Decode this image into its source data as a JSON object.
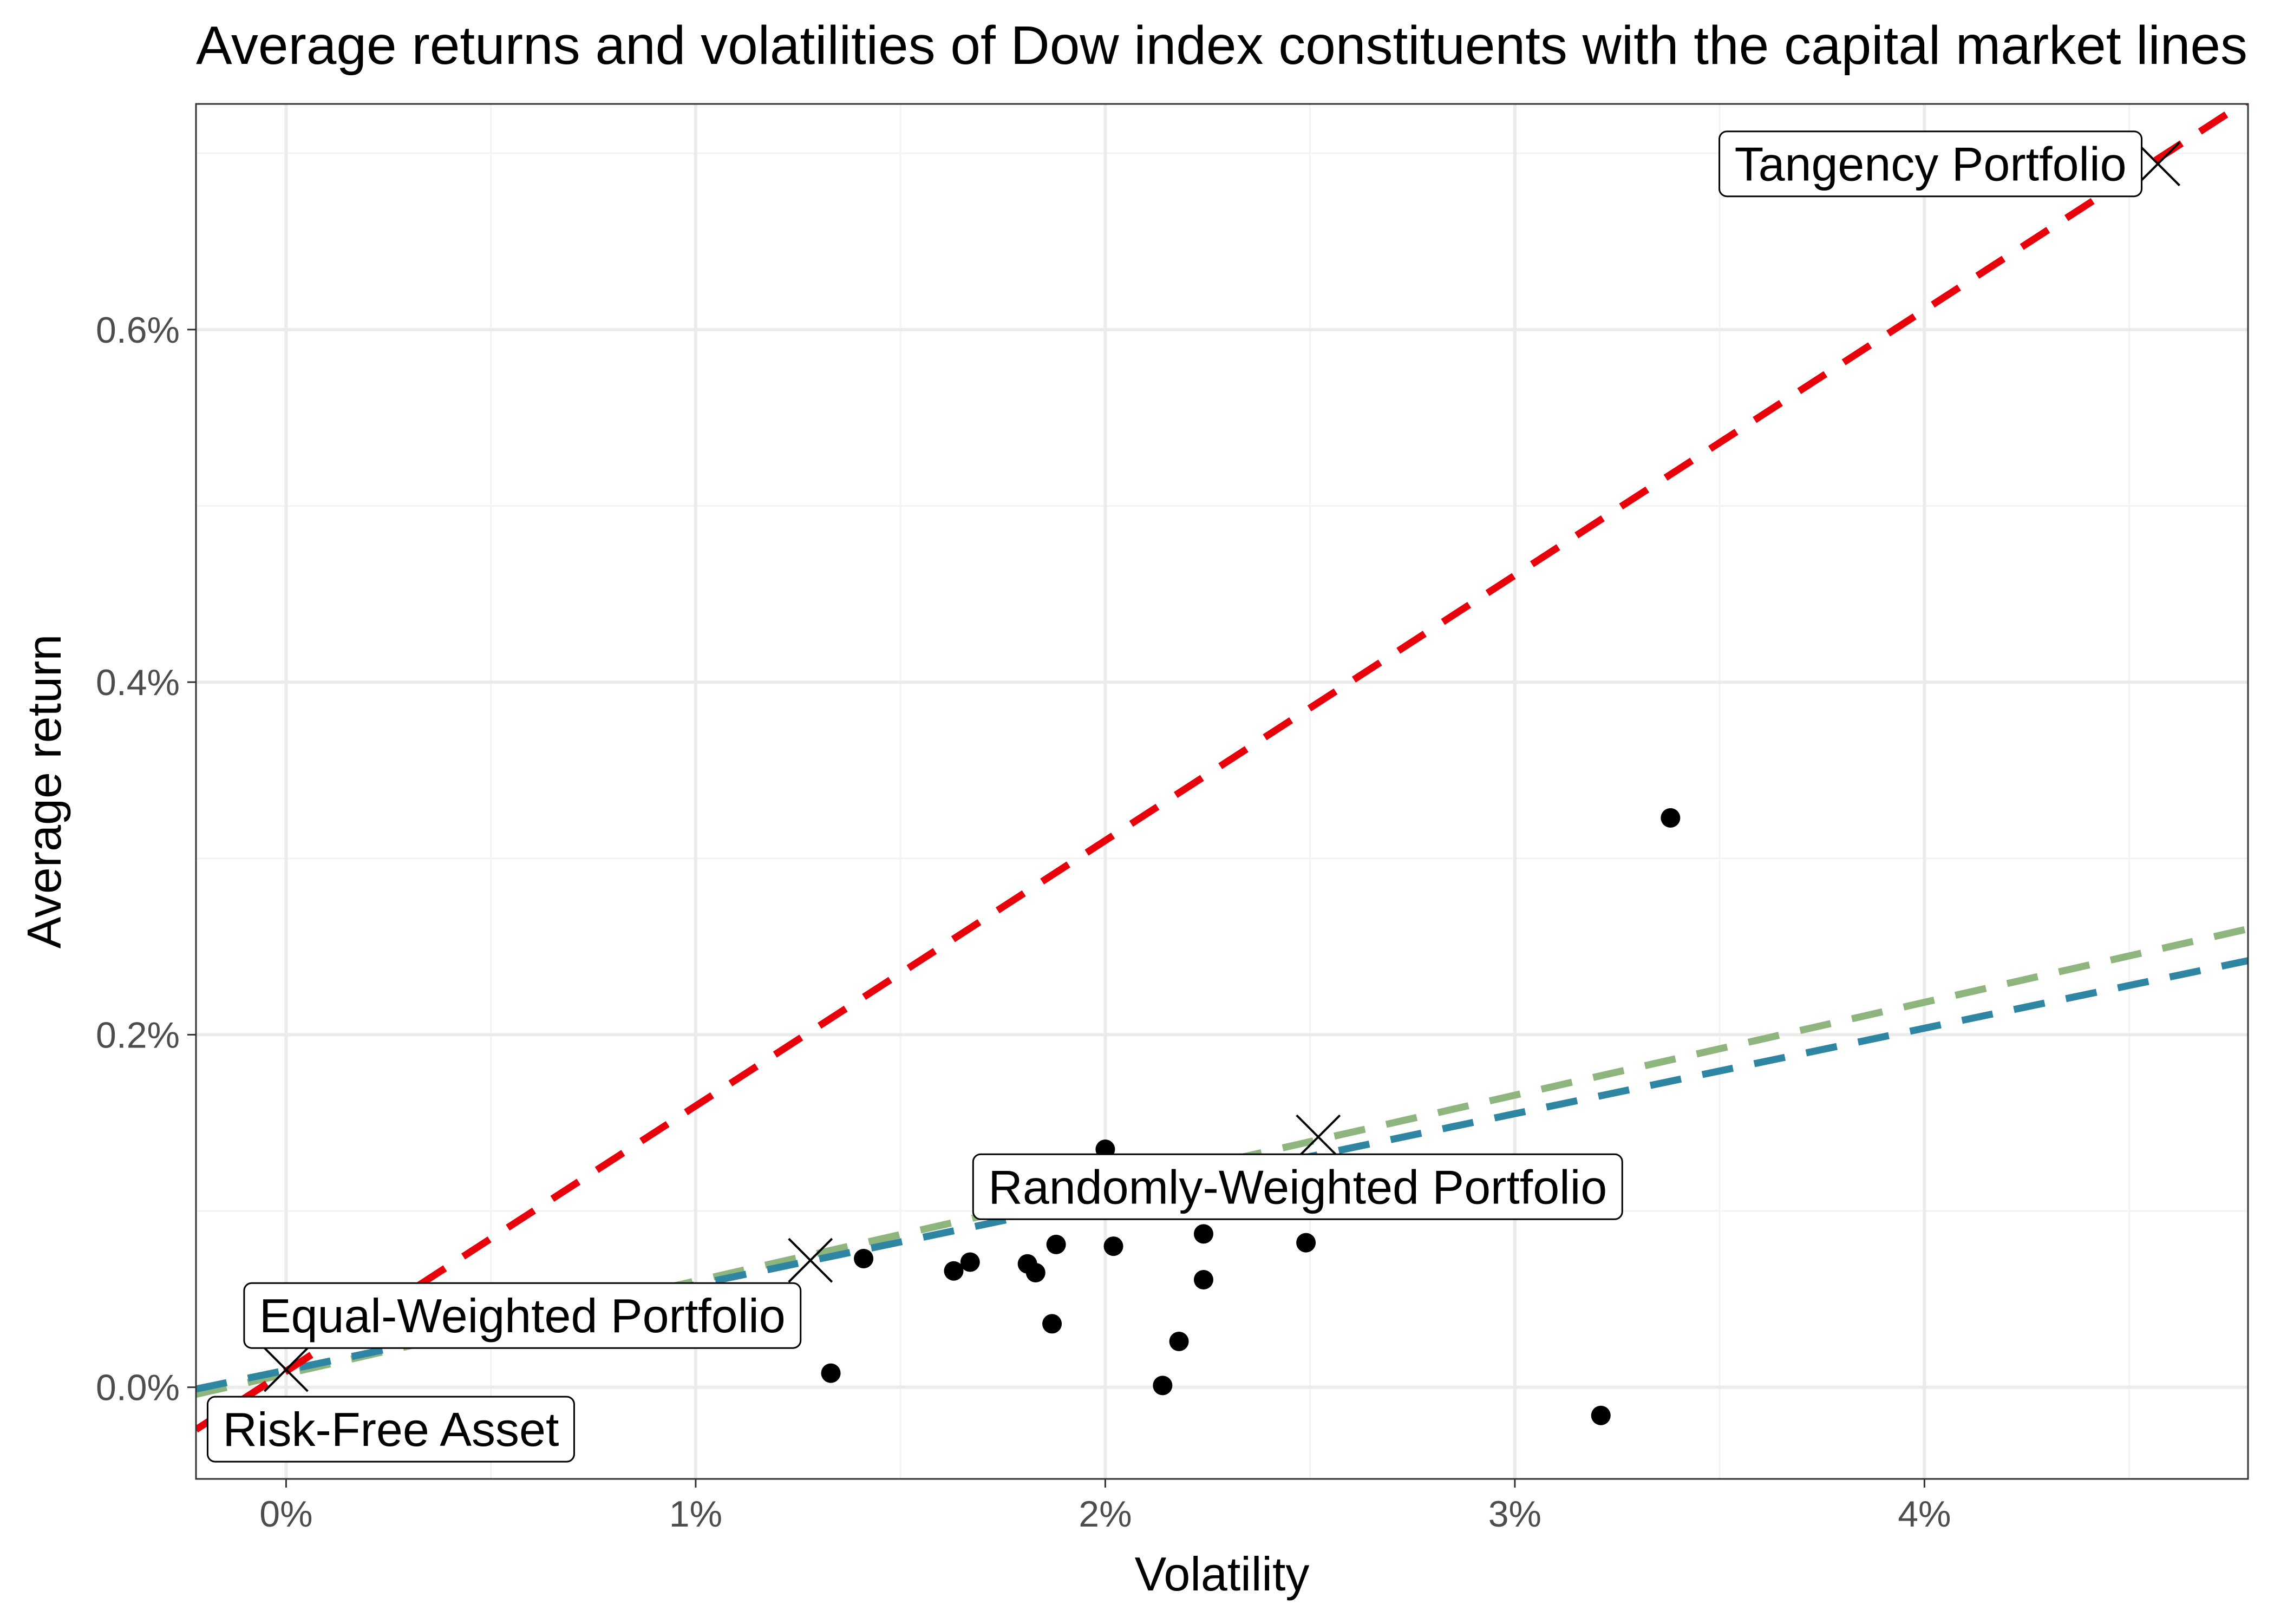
{
  "chart_data": {
    "type": "scatter",
    "title": "Average returns and volatilities of Dow index constituents with the capital market lines",
    "xlabel": "Volatility",
    "ylabel": "Average return",
    "xlim": [
      -0.0022,
      0.0479
    ],
    "ylim": [
      -0.00052,
      0.00728
    ],
    "x_ticks": [
      0,
      0.01,
      0.02,
      0.03,
      0.04
    ],
    "x_tick_labels": [
      "0%",
      "1%",
      "2%",
      "3%",
      "4%"
    ],
    "y_ticks": [
      0,
      0.002,
      0.004,
      0.006
    ],
    "y_tick_labels": [
      "0.0%",
      "0.2%",
      "0.4%",
      "0.6%"
    ],
    "grid": true,
    "legend": "none",
    "stocks": [
      {
        "x": 0.0133,
        "y": 8e-05
      },
      {
        "x": 0.0141,
        "y": 0.00073
      },
      {
        "x": 0.0163,
        "y": 0.00066
      },
      {
        "x": 0.0167,
        "y": 0.00071
      },
      {
        "x": 0.0181,
        "y": 0.0007
      },
      {
        "x": 0.0183,
        "y": 0.00065
      },
      {
        "x": 0.0187,
        "y": 0.00036
      },
      {
        "x": 0.0188,
        "y": 0.00081
      },
      {
        "x": 0.02,
        "y": 0.00135
      },
      {
        "x": 0.0202,
        "y": 0.0008
      },
      {
        "x": 0.0214,
        "y": 1e-05
      },
      {
        "x": 0.0218,
        "y": 0.00026
      },
      {
        "x": 0.0224,
        "y": 0.00087
      },
      {
        "x": 0.0224,
        "y": 0.00061
      },
      {
        "x": 0.0249,
        "y": 0.00082
      },
      {
        "x": 0.0321,
        "y": -0.00016
      },
      {
        "x": 0.0338,
        "y": 0.00323
      }
    ],
    "portfolios": [
      {
        "name": "Risk-Free Asset",
        "x": 0.0,
        "y": 0.0001,
        "label_anchor": "below-right"
      },
      {
        "name": "Equal-Weighted Portfolio",
        "x": 0.0128,
        "y": 0.00072,
        "label_anchor": "below-left"
      },
      {
        "name": "Randomly-Weighted Portfolio",
        "x": 0.0252,
        "y": 0.00142,
        "label_anchor": "below"
      },
      {
        "name": "Tangency Portfolio",
        "x": 0.0457,
        "y": 0.00694,
        "label_anchor": "left"
      }
    ],
    "capital_market_lines": [
      {
        "color": "#8fb57f",
        "x": [
          -0.0022,
          0.0479
        ],
        "y": [
          -4e-05,
          0.0026
        ]
      },
      {
        "color": "#2e86a3",
        "x": [
          -0.0022,
          0.0479
        ],
        "y": [
          -1e-05,
          0.00242
        ]
      },
      {
        "color": "#e8000b",
        "x": [
          -0.0022,
          0.0479
        ],
        "y": [
          -0.00024,
          0.0073
        ]
      }
    ],
    "colors": {
      "panel_border": "#333333",
      "grid_major": "#ebebeb",
      "grid_minor": "#f3f3f3",
      "points": "#000000",
      "markers": "#000000"
    }
  }
}
